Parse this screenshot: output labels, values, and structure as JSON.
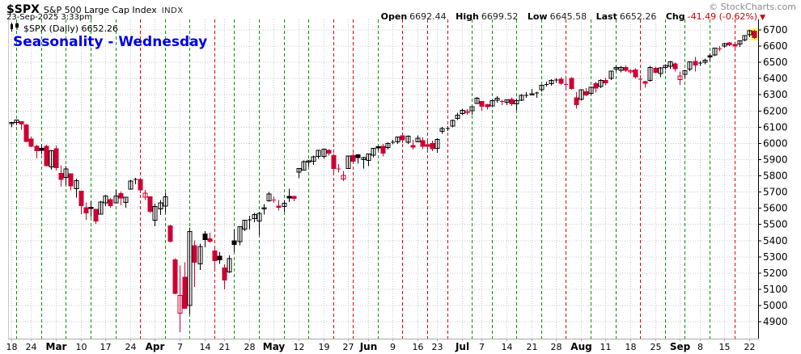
{
  "header": {
    "symbol": "$SPX",
    "index_name": "S&P 500 Large Cap Index",
    "exchange": "INDX",
    "timestamp": "23-Sep-2025 3:33pm",
    "copyright": "© StockCharts.com",
    "quote": {
      "open_label": "Open",
      "open_value": "6692.44",
      "high_label": "High",
      "high_value": "6699.52",
      "low_label": "Low",
      "low_value": "6645.58",
      "last_label": "Last",
      "last_value": "6652.26",
      "chg_label": "Chg",
      "chg_value": "-41.49 (-0.62%)",
      "chg_arrow": "▼"
    }
  },
  "legend": {
    "text": "$SPX (Daily) 6652.26"
  },
  "annotation": {
    "text": "Seasonality - Wednesday"
  },
  "colors": {
    "candle_up": "#000000",
    "candle_down": "#cc0033",
    "wednesday_up": "#009600",
    "wednesday_down": "#e10000",
    "grid": "#c9c9c9",
    "bottom_axis": "#aaaaaa",
    "price_axis": "#000000",
    "highlight": "#ffff44",
    "annotation_blue": "#0000e6",
    "negative_red": "#cc0000"
  },
  "chart_data": {
    "type": "candlestick",
    "title": "$SPX (Daily)",
    "ylabel": "",
    "ylim": [
      4850,
      6760
    ],
    "grid": true,
    "y_ticks": [
      4900,
      5000,
      5100,
      5200,
      5300,
      5400,
      5500,
      5600,
      5700,
      5800,
      5900,
      6000,
      6100,
      6200,
      6300,
      6400,
      6500,
      6600,
      6700
    ],
    "x_ticks": [
      {
        "i": 0,
        "label": "18"
      },
      {
        "i": 4,
        "label": "24"
      },
      {
        "i": 9,
        "label": "Mar",
        "month": true
      },
      {
        "i": 14,
        "label": "10"
      },
      {
        "i": 19,
        "label": "17"
      },
      {
        "i": 24,
        "label": "24"
      },
      {
        "i": 29,
        "label": "Apr",
        "month": true
      },
      {
        "i": 34,
        "label": "7"
      },
      {
        "i": 39,
        "label": "14"
      },
      {
        "i": 43,
        "label": "21"
      },
      {
        "i": 48,
        "label": "28"
      },
      {
        "i": 53,
        "label": "May",
        "month": true
      },
      {
        "i": 58,
        "label": "12"
      },
      {
        "i": 63,
        "label": "19"
      },
      {
        "i": 68,
        "label": "27"
      },
      {
        "i": 72,
        "label": "Jun",
        "month": true
      },
      {
        "i": 77,
        "label": "9"
      },
      {
        "i": 82,
        "label": "16"
      },
      {
        "i": 86,
        "label": "23"
      },
      {
        "i": 91,
        "label": "Jul",
        "month": true
      },
      {
        "i": 95,
        "label": "7"
      },
      {
        "i": 100,
        "label": "14"
      },
      {
        "i": 105,
        "label": "21"
      },
      {
        "i": 110,
        "label": "28"
      },
      {
        "i": 115,
        "label": "Aug",
        "month": true
      },
      {
        "i": 120,
        "label": "11"
      },
      {
        "i": 125,
        "label": "18"
      },
      {
        "i": 130,
        "label": "25"
      },
      {
        "i": 135,
        "label": "Sep",
        "month": true
      },
      {
        "i": 139,
        "label": "8"
      },
      {
        "i": 144,
        "label": "15"
      },
      {
        "i": 149,
        "label": "22"
      }
    ],
    "wednesday_lines": [
      {
        "i": 1,
        "dir": "up"
      },
      {
        "i": 6,
        "dir": "up"
      },
      {
        "i": 11,
        "dir": "up"
      },
      {
        "i": 16,
        "dir": "up"
      },
      {
        "i": 21,
        "dir": "up"
      },
      {
        "i": 26,
        "dir": "down"
      },
      {
        "i": 31,
        "dir": "up"
      },
      {
        "i": 36,
        "dir": "up"
      },
      {
        "i": 41,
        "dir": "down"
      },
      {
        "i": 45,
        "dir": "up"
      },
      {
        "i": 50,
        "dir": "up"
      },
      {
        "i": 55,
        "dir": "up"
      },
      {
        "i": 60,
        "dir": "up"
      },
      {
        "i": 65,
        "dir": "down"
      },
      {
        "i": 69,
        "dir": "down"
      },
      {
        "i": 74,
        "dir": "up"
      },
      {
        "i": 79,
        "dir": "down"
      },
      {
        "i": 84,
        "dir": "down"
      },
      {
        "i": 88,
        "dir": "down"
      },
      {
        "i": 93,
        "dir": "up"
      },
      {
        "i": 97,
        "dir": "up"
      },
      {
        "i": 102,
        "dir": "up"
      },
      {
        "i": 107,
        "dir": "up"
      },
      {
        "i": 112,
        "dir": "down"
      },
      {
        "i": 117,
        "dir": "up"
      },
      {
        "i": 122,
        "dir": "up"
      },
      {
        "i": 127,
        "dir": "down"
      },
      {
        "i": 132,
        "dir": "up"
      },
      {
        "i": 136,
        "dir": "up"
      },
      {
        "i": 141,
        "dir": "up"
      },
      {
        "i": 146,
        "dir": "down"
      }
    ],
    "highlight_last": true,
    "dates": [
      "Feb 18",
      "Feb 19",
      "Feb 20",
      "Feb 21",
      "Feb 24",
      "Feb 25",
      "Feb 26",
      "Feb 27",
      "Feb 28",
      "Mar 3",
      "Mar 4",
      "Mar 5",
      "Mar 6",
      "Mar 7",
      "Mar 10",
      "Mar 11",
      "Mar 12",
      "Mar 13",
      "Mar 14",
      "Mar 17",
      "Mar 18",
      "Mar 19",
      "Mar 20",
      "Mar 21",
      "Mar 24",
      "Mar 25",
      "Mar 26",
      "Mar 27",
      "Mar 28",
      "Mar 31",
      "Apr 1",
      "Apr 2",
      "Apr 3",
      "Apr 4",
      "Apr 7",
      "Apr 8",
      "Apr 9",
      "Apr 10",
      "Apr 11",
      "Apr 14",
      "Apr 15",
      "Apr 16",
      "Apr 17",
      "Apr 21",
      "Apr 22",
      "Apr 23",
      "Apr 24",
      "Apr 25",
      "Apr 28",
      "Apr 29",
      "Apr 30",
      "May 1",
      "May 2",
      "May 5",
      "May 6",
      "May 7",
      "May 8",
      "May 9",
      "May 12",
      "May 13",
      "May 14",
      "May 15",
      "May 16",
      "May 19",
      "May 20",
      "May 21",
      "May 22",
      "May 23",
      "May 27",
      "May 28",
      "May 29",
      "May 30",
      "Jun 2",
      "Jun 3",
      "Jun 4",
      "Jun 5",
      "Jun 6",
      "Jun 9",
      "Jun 10",
      "Jun 11",
      "Jun 12",
      "Jun 13",
      "Jun 16",
      "Jun 17",
      "Jun 18",
      "Jun 20",
      "Jun 23",
      "Jun 24",
      "Jun 25",
      "Jun 26",
      "Jun 27",
      "Jun 30",
      "Jul 1",
      "Jul 2",
      "Jul 3",
      "Jul 7",
      "Jul 8",
      "Jul 9",
      "Jul 10",
      "Jul 11",
      "Jul 14",
      "Jul 15",
      "Jul 16",
      "Jul 17",
      "Jul 18",
      "Jul 21",
      "Jul 22",
      "Jul 23",
      "Jul 24",
      "Jul 25",
      "Jul 28",
      "Jul 29",
      "Jul 30",
      "Jul 31",
      "Aug 1",
      "Aug 4",
      "Aug 5",
      "Aug 6",
      "Aug 7",
      "Aug 8",
      "Aug 11",
      "Aug 12",
      "Aug 13",
      "Aug 14",
      "Aug 15",
      "Aug 18",
      "Aug 19",
      "Aug 20",
      "Aug 21",
      "Aug 22",
      "Aug 25",
      "Aug 26",
      "Aug 27",
      "Aug 28",
      "Aug 29",
      "Sep 2",
      "Sep 3",
      "Sep 4",
      "Sep 5",
      "Sep 8",
      "Sep 9",
      "Sep 10",
      "Sep 11",
      "Sep 12",
      "Sep 15",
      "Sep 16",
      "Sep 17",
      "Sep 18",
      "Sep 19",
      "Sep 22",
      "Sep 23"
    ],
    "ohlc": [
      [
        6122,
        6130,
        6099,
        6130
      ],
      [
        6129,
        6147,
        6111,
        6144
      ],
      [
        6134,
        6135,
        6085,
        6118
      ],
      [
        6115,
        6120,
        6008,
        6013
      ],
      [
        6026,
        6043,
        5977,
        5983
      ],
      [
        5982,
        5992,
        5908,
        5955
      ],
      [
        5970,
        5993,
        5932,
        5956
      ],
      [
        5981,
        5993,
        5858,
        5862
      ],
      [
        5856,
        5959,
        5837,
        5955
      ],
      [
        5968,
        5986,
        5832,
        5850
      ],
      [
        5815,
        5865,
        5732,
        5778
      ],
      [
        5790,
        5860,
        5742,
        5843
      ],
      [
        5812,
        5812,
        5711,
        5739
      ],
      [
        5720,
        5783,
        5666,
        5770
      ],
      [
        5705,
        5705,
        5564,
        5615
      ],
      [
        5603,
        5636,
        5528,
        5572
      ],
      [
        5605,
        5642,
        5546,
        5599
      ],
      [
        5594,
        5597,
        5504,
        5522
      ],
      [
        5564,
        5645,
        5563,
        5639
      ],
      [
        5633,
        5680,
        5614,
        5675
      ],
      [
        5653,
        5662,
        5603,
        5615
      ],
      [
        5633,
        5715,
        5632,
        5675
      ],
      [
        5690,
        5702,
        5617,
        5663
      ],
      [
        5635,
        5670,
        5603,
        5668
      ],
      [
        5718,
        5776,
        5718,
        5768
      ],
      [
        5777,
        5787,
        5748,
        5777
      ],
      [
        5777,
        5783,
        5693,
        5712
      ],
      [
        5668,
        5712,
        5651,
        5693
      ],
      [
        5670,
        5671,
        5572,
        5581
      ],
      [
        5527,
        5627,
        5488,
        5612
      ],
      [
        5597,
        5650,
        5559,
        5633
      ],
      [
        5613,
        5695,
        5571,
        5671
      ],
      [
        5492,
        5499,
        5390,
        5397
      ],
      [
        5283,
        5292,
        5069,
        5074
      ],
      [
        4953,
        5246,
        4835,
        5062
      ],
      [
        5174,
        5267,
        4982,
        4983
      ],
      [
        4999,
        5481,
        4948,
        5457
      ],
      [
        5369,
        5401,
        5115,
        5268
      ],
      [
        5256,
        5381,
        5220,
        5363
      ],
      [
        5442,
        5459,
        5358,
        5406
      ],
      [
        5412,
        5450,
        5386,
        5397
      ],
      [
        5336,
        5367,
        5220,
        5276
      ],
      [
        5305,
        5328,
        5256,
        5283
      ],
      [
        5232,
        5254,
        5101,
        5158
      ],
      [
        5208,
        5309,
        5202,
        5288
      ],
      [
        5398,
        5469,
        5330,
        5376
      ],
      [
        5394,
        5487,
        5372,
        5485
      ],
      [
        5470,
        5528,
        5459,
        5525
      ],
      [
        5529,
        5553,
        5469,
        5529
      ],
      [
        5535,
        5572,
        5513,
        5561
      ],
      [
        5521,
        5578,
        5433,
        5569
      ],
      [
        5597,
        5626,
        5562,
        5604
      ],
      [
        5645,
        5701,
        5640,
        5687
      ],
      [
        5652,
        5672,
        5634,
        5650
      ],
      [
        5613,
        5650,
        5586,
        5607
      ],
      [
        5612,
        5650,
        5578,
        5631
      ],
      [
        5672,
        5720,
        5638,
        5664
      ],
      [
        5672,
        5677,
        5643,
        5660
      ],
      [
        5823,
        5845,
        5786,
        5844
      ],
      [
        5834,
        5896,
        5832,
        5887
      ],
      [
        5886,
        5898,
        5858,
        5893
      ],
      [
        5891,
        5924,
        5868,
        5917
      ],
      [
        5921,
        5958,
        5906,
        5958
      ],
      [
        5920,
        5968,
        5905,
        5964
      ],
      [
        5956,
        5965,
        5924,
        5940
      ],
      [
        5925,
        5937,
        5822,
        5845
      ],
      [
        5842,
        5873,
        5820,
        5842
      ],
      [
        5781,
        5829,
        5767,
        5803
      ],
      [
        5846,
        5922,
        5843,
        5922
      ],
      [
        5925,
        5939,
        5880,
        5889
      ],
      [
        5931,
        5933,
        5874,
        5912
      ],
      [
        5899,
        5917,
        5844,
        5912
      ],
      [
        5896,
        5937,
        5861,
        5936
      ],
      [
        5927,
        5972,
        5914,
        5970
      ],
      [
        5979,
        5985,
        5954,
        5971
      ],
      [
        5982,
        5996,
        5921,
        5939
      ],
      [
        5974,
        6006,
        5963,
        6000
      ],
      [
        6001,
        6021,
        5994,
        6006
      ],
      [
        6009,
        6043,
        5996,
        6039
      ],
      [
        6048,
        6059,
        6002,
        6022
      ],
      [
        6006,
        6049,
        5996,
        6045
      ],
      [
        5986,
        6022,
        5963,
        5977
      ],
      [
        6009,
        6050,
        6006,
        6033
      ],
      [
        6018,
        6036,
        5965,
        5983
      ],
      [
        5993,
        6012,
        5958,
        5981
      ],
      [
        5999,
        6018,
        5952,
        5968
      ],
      [
        5969,
        6031,
        5943,
        6025
      ],
      [
        6075,
        6101,
        6059,
        6092
      ],
      [
        6093,
        6106,
        6076,
        6092
      ],
      [
        6106,
        6146,
        6100,
        6141
      ],
      [
        6153,
        6188,
        6144,
        6173
      ],
      [
        6185,
        6215,
        6174,
        6205
      ],
      [
        6188,
        6211,
        6177,
        6198
      ],
      [
        6201,
        6228,
        6177,
        6227
      ],
      [
        6247,
        6285,
        6246,
        6279
      ],
      [
        6260,
        6262,
        6201,
        6230
      ],
      [
        6240,
        6243,
        6208,
        6226
      ],
      [
        6232,
        6269,
        6226,
        6263
      ],
      [
        6266,
        6290,
        6251,
        6280
      ],
      [
        6256,
        6270,
        6237,
        6260
      ],
      [
        6255,
        6271,
        6237,
        6269
      ],
      [
        6272,
        6283,
        6232,
        6244
      ],
      [
        6243,
        6276,
        6204,
        6264
      ],
      [
        6267,
        6304,
        6262,
        6297
      ],
      [
        6299,
        6315,
        6281,
        6297
      ],
      [
        6298,
        6336,
        6298,
        6306
      ],
      [
        6310,
        6318,
        6282,
        6310
      ],
      [
        6331,
        6360,
        6319,
        6359
      ],
      [
        6368,
        6381,
        6350,
        6363
      ],
      [
        6368,
        6395,
        6355,
        6389
      ],
      [
        6395,
        6401,
        6374,
        6390
      ],
      [
        6396,
        6409,
        6360,
        6371
      ],
      [
        6368,
        6396,
        6340,
        6363
      ],
      [
        6400,
        6408,
        6330,
        6339
      ],
      [
        6281,
        6315,
        6213,
        6238
      ],
      [
        6272,
        6331,
        6263,
        6330
      ],
      [
        6318,
        6341,
        6291,
        6299
      ],
      [
        6308,
        6352,
        6298,
        6345
      ],
      [
        6368,
        6382,
        6313,
        6340
      ],
      [
        6352,
        6395,
        6342,
        6389
      ],
      [
        6389,
        6406,
        6358,
        6373
      ],
      [
        6401,
        6446,
        6391,
        6446
      ],
      [
        6458,
        6481,
        6443,
        6467
      ],
      [
        6450,
        6477,
        6439,
        6469
      ],
      [
        6469,
        6481,
        6442,
        6450
      ],
      [
        6442,
        6458,
        6430,
        6449
      ],
      [
        6453,
        6464,
        6401,
        6411
      ],
      [
        6400,
        6420,
        6343,
        6396
      ],
      [
        6380,
        6386,
        6344,
        6370
      ],
      [
        6389,
        6478,
        6380,
        6467
      ],
      [
        6464,
        6473,
        6430,
        6439
      ],
      [
        6431,
        6470,
        6408,
        6466
      ],
      [
        6467,
        6488,
        6455,
        6481
      ],
      [
        6476,
        6508,
        6459,
        6502
      ],
      [
        6490,
        6497,
        6444,
        6460
      ],
      [
        6394,
        6443,
        6360,
        6416
      ],
      [
        6425,
        6453,
        6402,
        6448
      ],
      [
        6458,
        6503,
        6446,
        6502
      ],
      [
        6506,
        6533,
        6444,
        6482
      ],
      [
        6497,
        6508,
        6479,
        6495
      ],
      [
        6501,
        6523,
        6487,
        6513
      ],
      [
        6540,
        6555,
        6506,
        6532
      ],
      [
        6545,
        6590,
        6539,
        6587
      ],
      [
        6585,
        6600,
        6569,
        6584
      ],
      [
        6600,
        6619,
        6591,
        6615
      ],
      [
        6620,
        6626,
        6601,
        6607
      ],
      [
        6610,
        6628,
        6576,
        6600
      ],
      [
        6612,
        6635,
        6596,
        6632
      ],
      [
        6637,
        6666,
        6631,
        6664
      ],
      [
        6669,
        6699,
        6655,
        6694
      ],
      [
        6692,
        6700,
        6646,
        6652
      ]
    ]
  }
}
